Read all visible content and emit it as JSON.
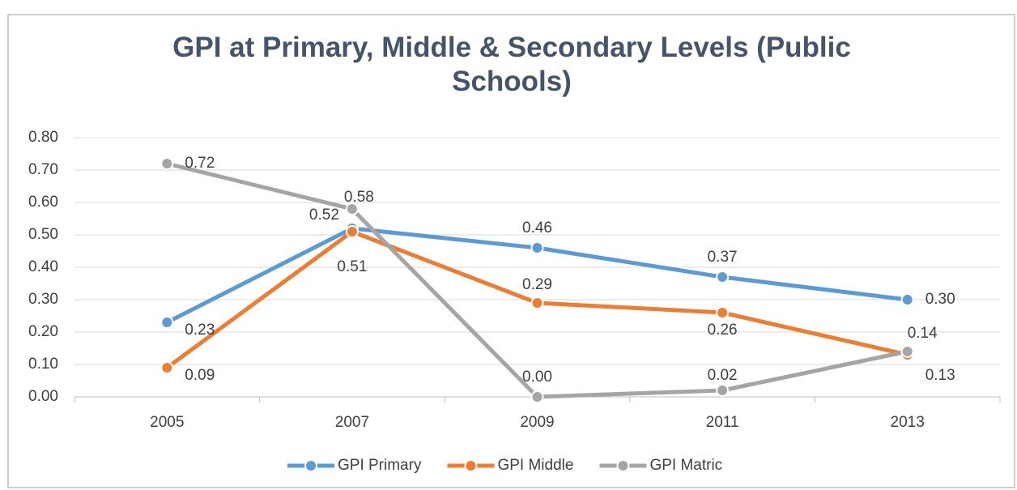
{
  "chart_data": {
    "type": "line",
    "title": "GPI at Primary, Middle & Secondary Levels (Public Schools)",
    "categories": [
      "2005",
      "2007",
      "2009",
      "2011",
      "2013"
    ],
    "series": [
      {
        "name": "GPI Primary",
        "color": "#5b9bd5",
        "values": [
          0.23,
          0.52,
          0.46,
          0.37,
          0.3
        ],
        "value_labels": [
          "0.23",
          "0.52",
          "0.46",
          "0.37",
          "0.30"
        ]
      },
      {
        "name": "GPI Middle",
        "color": "#ed7d31",
        "values": [
          0.09,
          0.51,
          0.29,
          0.26,
          0.13
        ],
        "value_labels": [
          "0.09",
          "0.51",
          "0.29",
          "0.26",
          "0.13"
        ]
      },
      {
        "name": "GPI Matric",
        "color": "#a5a5a5",
        "values": [
          0.72,
          0.58,
          0.0,
          0.02,
          0.14
        ],
        "value_labels": [
          "0.72",
          "0.58",
          "0.00",
          "0.02",
          "0.14"
        ]
      }
    ],
    "ylim": [
      0,
      0.8
    ],
    "yticks": [
      {
        "value": 0,
        "label": "0.00"
      },
      {
        "value": 0.1,
        "label": "0.10"
      },
      {
        "value": 0.2,
        "label": "0.20"
      },
      {
        "value": 0.3,
        "label": "0.30"
      },
      {
        "value": 0.4,
        "label": "0.40"
      },
      {
        "value": 0.5,
        "label": "0.50"
      },
      {
        "value": 0.6,
        "label": "0.60"
      },
      {
        "value": 0.7,
        "label": "0.70"
      },
      {
        "value": 0.8,
        "label": "0.80"
      }
    ],
    "grid": true,
    "legend": "bottom"
  }
}
